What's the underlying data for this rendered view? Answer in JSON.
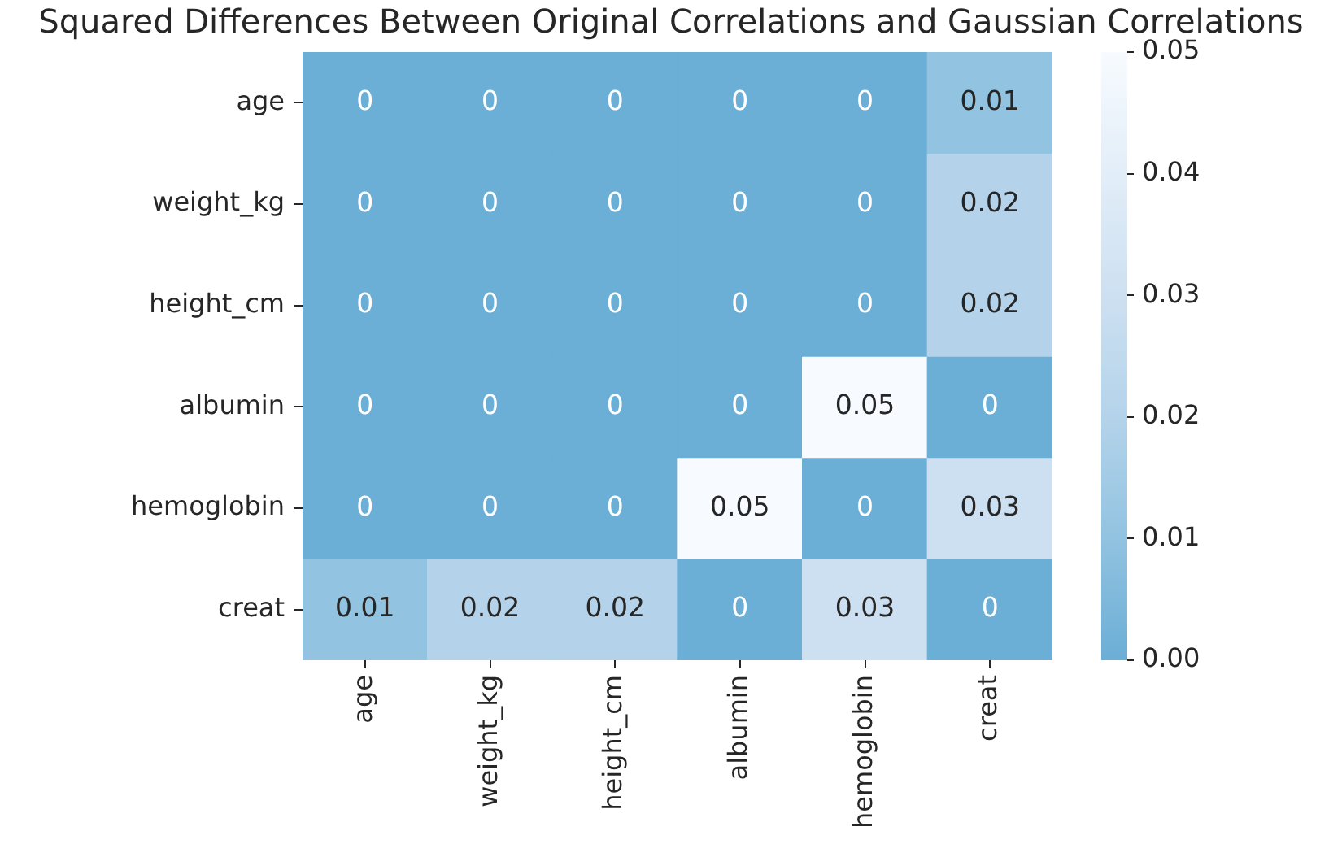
{
  "chart_data": {
    "type": "heatmap",
    "title": "Squared Differences Between Original Correlations and Gaussian Correlations",
    "categories": [
      "age",
      "weight_kg",
      "height_cm",
      "albumin",
      "hemoglobin",
      "creat"
    ],
    "y_categories": [
      "age",
      "weight_kg",
      "height_cm",
      "albumin",
      "hemoglobin",
      "creat"
    ],
    "cells": [
      [
        0,
        0,
        0,
        0,
        0,
        0.01
      ],
      [
        0,
        0,
        0,
        0,
        0,
        0.02
      ],
      [
        0,
        0,
        0,
        0,
        0,
        0.02
      ],
      [
        0,
        0,
        0,
        0,
        0.05,
        0
      ],
      [
        0,
        0,
        0,
        0.05,
        0,
        0.03
      ],
      [
        0.01,
        0.02,
        0.02,
        0,
        0.03,
        0
      ]
    ],
    "clim": [
      0,
      0.05
    ],
    "cticks": [
      {
        "value": 0,
        "label": "0.00"
      },
      0.01,
      0.02,
      0.03,
      0.04,
      0.05
    ],
    "data_labels": true
  }
}
